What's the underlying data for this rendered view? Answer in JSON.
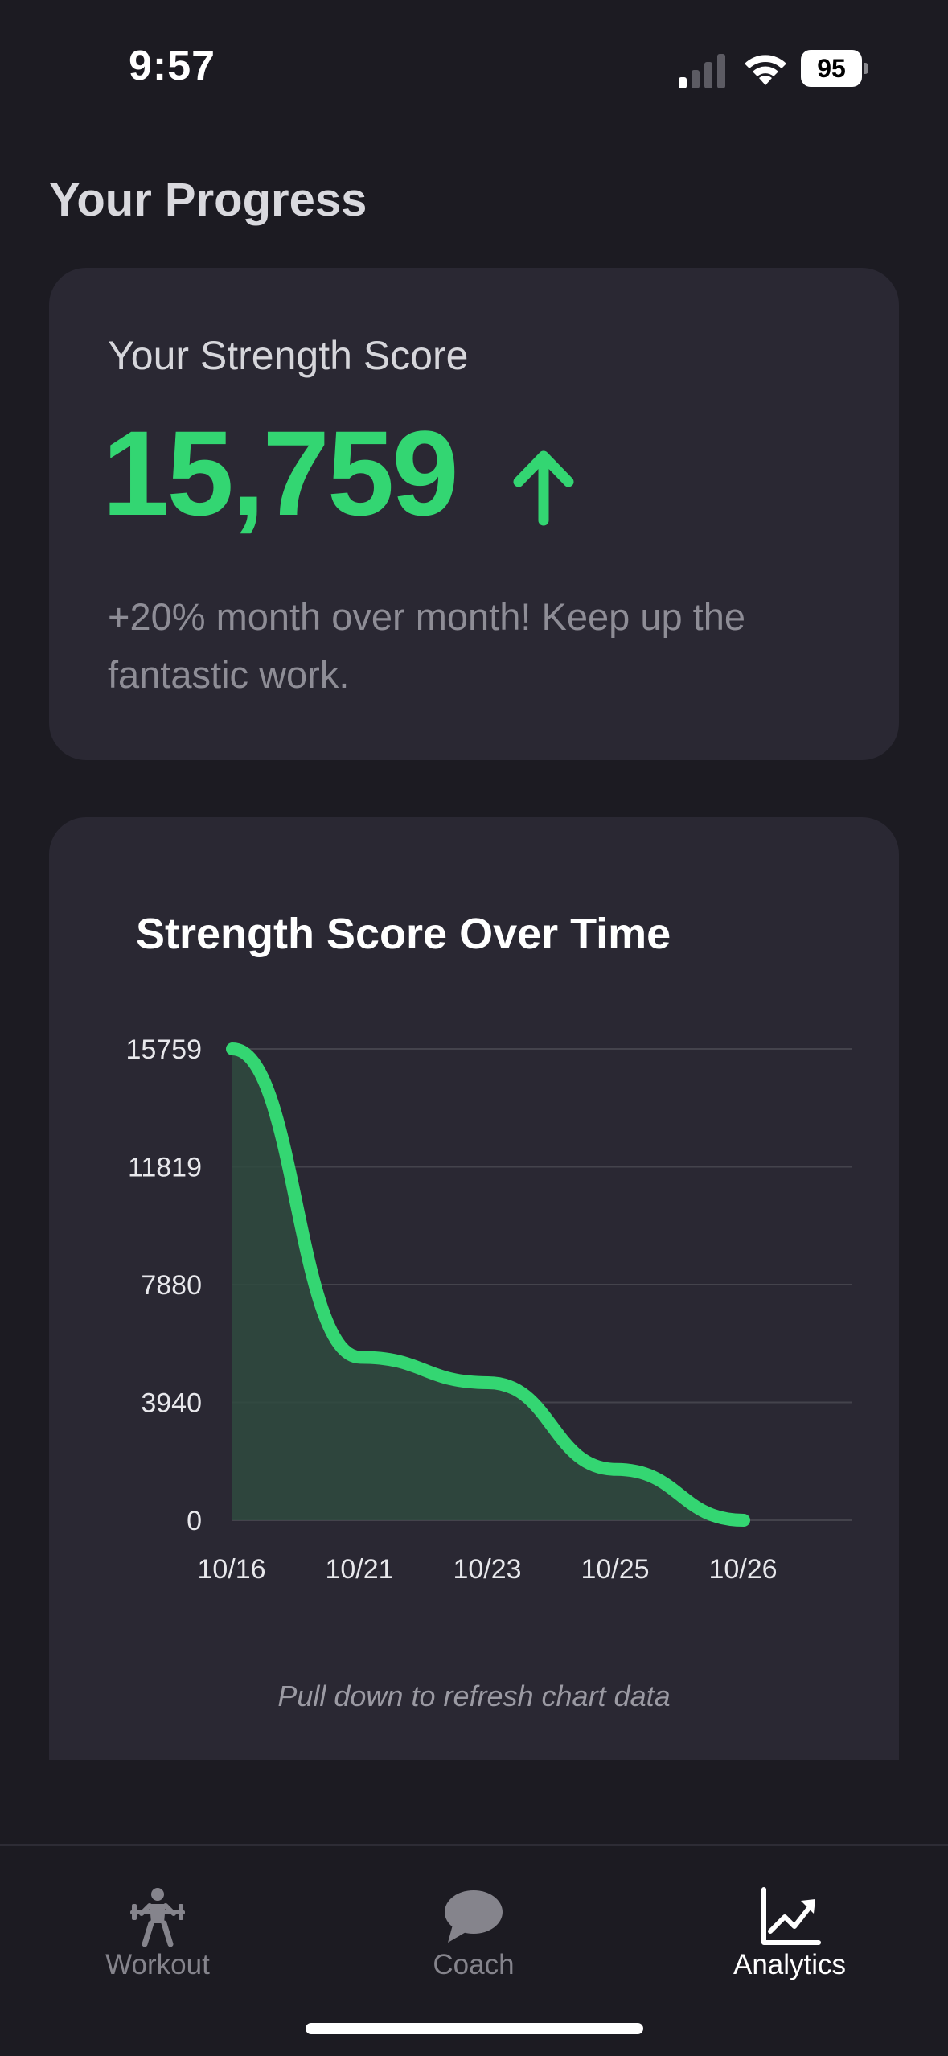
{
  "status_bar": {
    "time": "9:57",
    "battery_percent": "95",
    "signal_bars_active": 1,
    "signal_bars_total": 4
  },
  "page": {
    "title": "Your Progress"
  },
  "score_card": {
    "label": "Your Strength Score",
    "value": "15,759",
    "trend_icon": "arrow-up-icon",
    "note": "+20% month over month! Keep up the fantastic work."
  },
  "chart_card": {
    "hint": "Pull down to refresh chart data"
  },
  "chart_data": {
    "type": "area",
    "title": "Strength Score Over Time",
    "xlabel": "",
    "ylabel": "",
    "categories": [
      "10/16",
      "10/21",
      "10/23",
      "10/25",
      "10/26"
    ],
    "values": [
      15759,
      5450,
      4600,
      1700,
      0
    ],
    "y_ticks": [
      "0",
      "3940",
      "7880",
      "11819",
      "15759"
    ],
    "ylim": [
      0,
      15759
    ],
    "grid": true,
    "line_color": "#34d672",
    "fill_color": "#2f4a3f",
    "grid_color": "#44434c"
  },
  "tab_bar": {
    "tabs": [
      {
        "label": "Workout",
        "icon": "weightlifter-icon",
        "active": false
      },
      {
        "label": "Coach",
        "icon": "chat-bubble-icon",
        "active": false
      },
      {
        "label": "Analytics",
        "icon": "trend-chart-icon",
        "active": true
      }
    ]
  },
  "colors": {
    "background": "#1c1b22",
    "card": "#2a2833",
    "accent_green": "#33d672",
    "muted_text": "#8e8d96"
  }
}
